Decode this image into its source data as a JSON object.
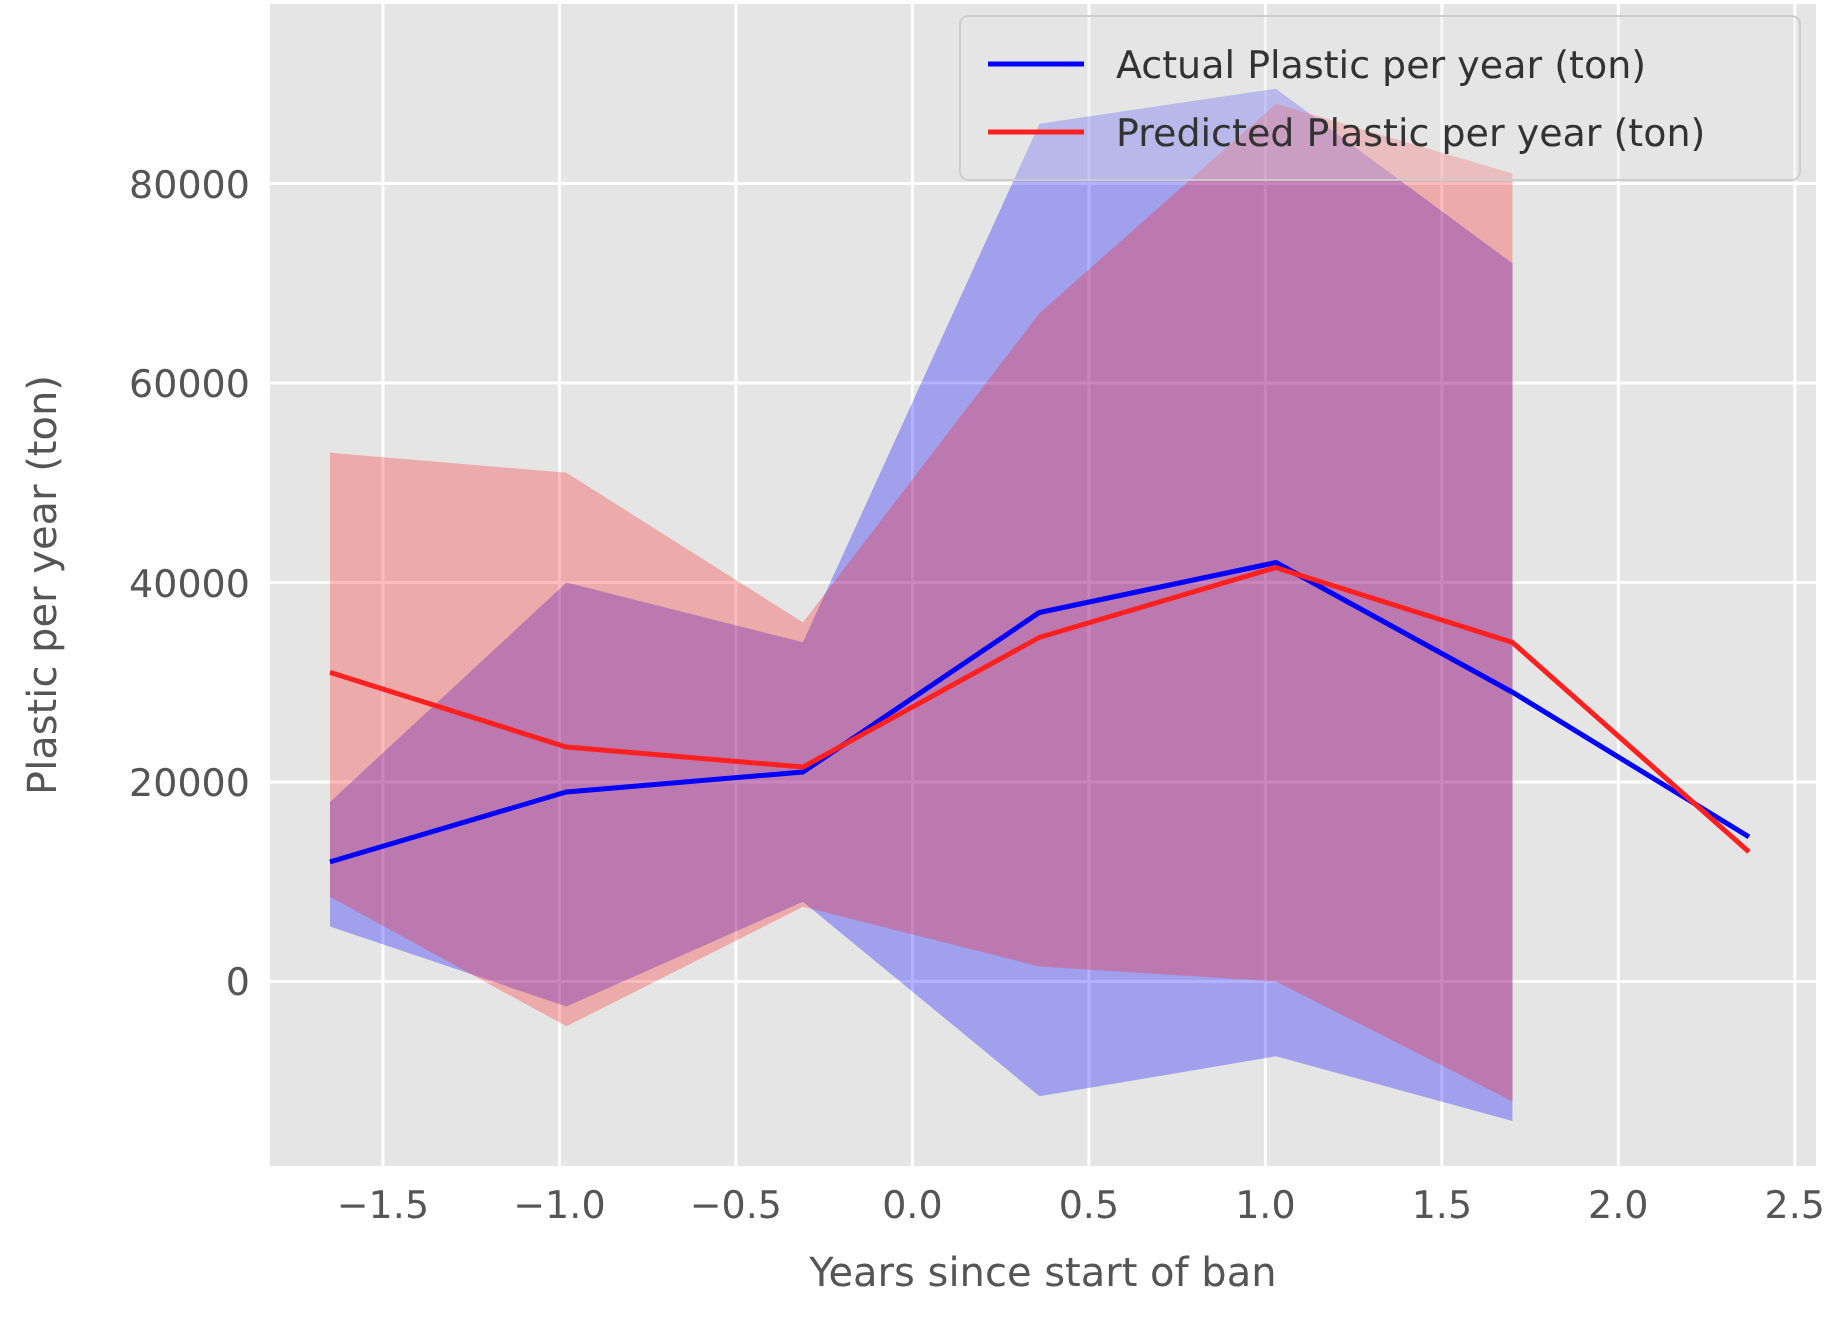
{
  "chart_data": {
    "type": "line",
    "xlabel": "Years since start of ban",
    "ylabel": "Plastic per year (ton)",
    "x": [
      -1.65,
      -0.98,
      -0.31,
      0.36,
      1.03,
      1.7,
      2.37
    ],
    "series": [
      {
        "name": "Actual Plastic per year (ton)",
        "color": "#0000ff",
        "values": [
          12000,
          19000,
          21000,
          37000,
          42000,
          29000,
          14500
        ],
        "lower": [
          5500,
          -2500,
          8000,
          -11500,
          -7500,
          -14000,
          null
        ],
        "upper": [
          18000,
          40000,
          34000,
          86000,
          89500,
          72000,
          null
        ]
      },
      {
        "name": "Predicted Plastic per year (ton)",
        "color": "#ff2020",
        "values": [
          31000,
          23500,
          21500,
          34500,
          41500,
          34000,
          13000
        ],
        "lower": [
          8500,
          -4500,
          7500,
          1500,
          0,
          -12000,
          null
        ],
        "upper": [
          53000,
          51000,
          36000,
          67000,
          88000,
          81000,
          null
        ]
      }
    ],
    "xlim": [
      -1.82,
      2.56
    ],
    "ylim": [
      -18500,
      98000
    ],
    "xticks": [
      {
        "value": -1.5,
        "label": "−1.5"
      },
      {
        "value": -1,
        "label": "−1.0"
      },
      {
        "value": -0.5,
        "label": "−0.5"
      },
      {
        "value": 0,
        "label": "0.0"
      },
      {
        "value": 0.5,
        "label": "0.5"
      },
      {
        "value": 1,
        "label": "1.0"
      },
      {
        "value": 1.5,
        "label": "1.5"
      },
      {
        "value": 2,
        "label": "2.0"
      },
      {
        "value": 2.5,
        "label": "2.5"
      }
    ],
    "yticks": [
      0,
      20000,
      40000,
      60000,
      80000
    ],
    "grid": true,
    "legend": "top right"
  }
}
